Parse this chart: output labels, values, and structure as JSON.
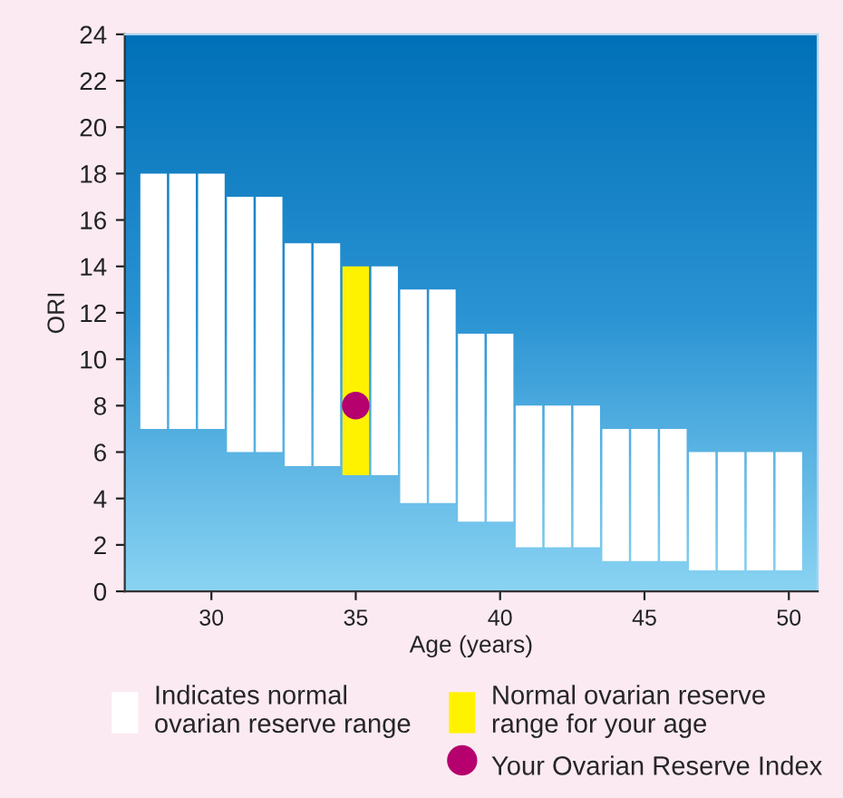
{
  "chart_data": {
    "type": "bar",
    "xlabel": "Age (years)",
    "ylabel": "ORI",
    "x": [
      28,
      29,
      30,
      31,
      32,
      33,
      34,
      35,
      36,
      37,
      38,
      39,
      40,
      41,
      42,
      43,
      44,
      45,
      46,
      47,
      48,
      49,
      50
    ],
    "series": [
      {
        "name": "Indicates normal\novarian reserve range",
        "color": "#ffffff",
        "values": [
          11,
          11,
          11,
          11,
          11,
          9.6,
          9.6,
          null,
          9,
          9.2,
          9.2,
          8.1,
          8.1,
          6.1,
          6.1,
          6.1,
          5.7,
          5.7,
          5.7,
          5.1,
          5.1,
          5.1,
          5.1
        ],
        "base": [
          7,
          7,
          7,
          6,
          6,
          5.4,
          5.4,
          null,
          5,
          3.8,
          3.8,
          3,
          3,
          1.9,
          1.9,
          1.9,
          1.3,
          1.3,
          1.3,
          0.9,
          0.9,
          0.9,
          0.9
        ]
      },
      {
        "name": "Normal ovarian reserve\nrange for your age",
        "color": "#fff200",
        "values": [
          null,
          null,
          null,
          null,
          null,
          null,
          null,
          9,
          null,
          null,
          null,
          null,
          null,
          null,
          null,
          null,
          null,
          null,
          null,
          null,
          null,
          null,
          null
        ],
        "base": [
          null,
          null,
          null,
          null,
          null,
          null,
          null,
          5,
          null,
          null,
          null,
          null,
          null,
          null,
          null,
          null,
          null,
          null,
          null,
          null,
          null,
          null,
          null
        ]
      },
      {
        "name": "Your Ovarian Reserve Index",
        "type": "scatter",
        "color": "#b5006e",
        "x": [
          35
        ],
        "values": [
          8
        ]
      }
    ],
    "xlim": [
      27,
      51
    ],
    "xticks": [
      30,
      35,
      40,
      45,
      50
    ],
    "ylim": [
      0,
      24
    ],
    "yticks": [
      0,
      2,
      4,
      6,
      8,
      10,
      12,
      14,
      16,
      18,
      20,
      22,
      24
    ],
    "grid": false,
    "legend": "bottom",
    "marker": "circle"
  }
}
